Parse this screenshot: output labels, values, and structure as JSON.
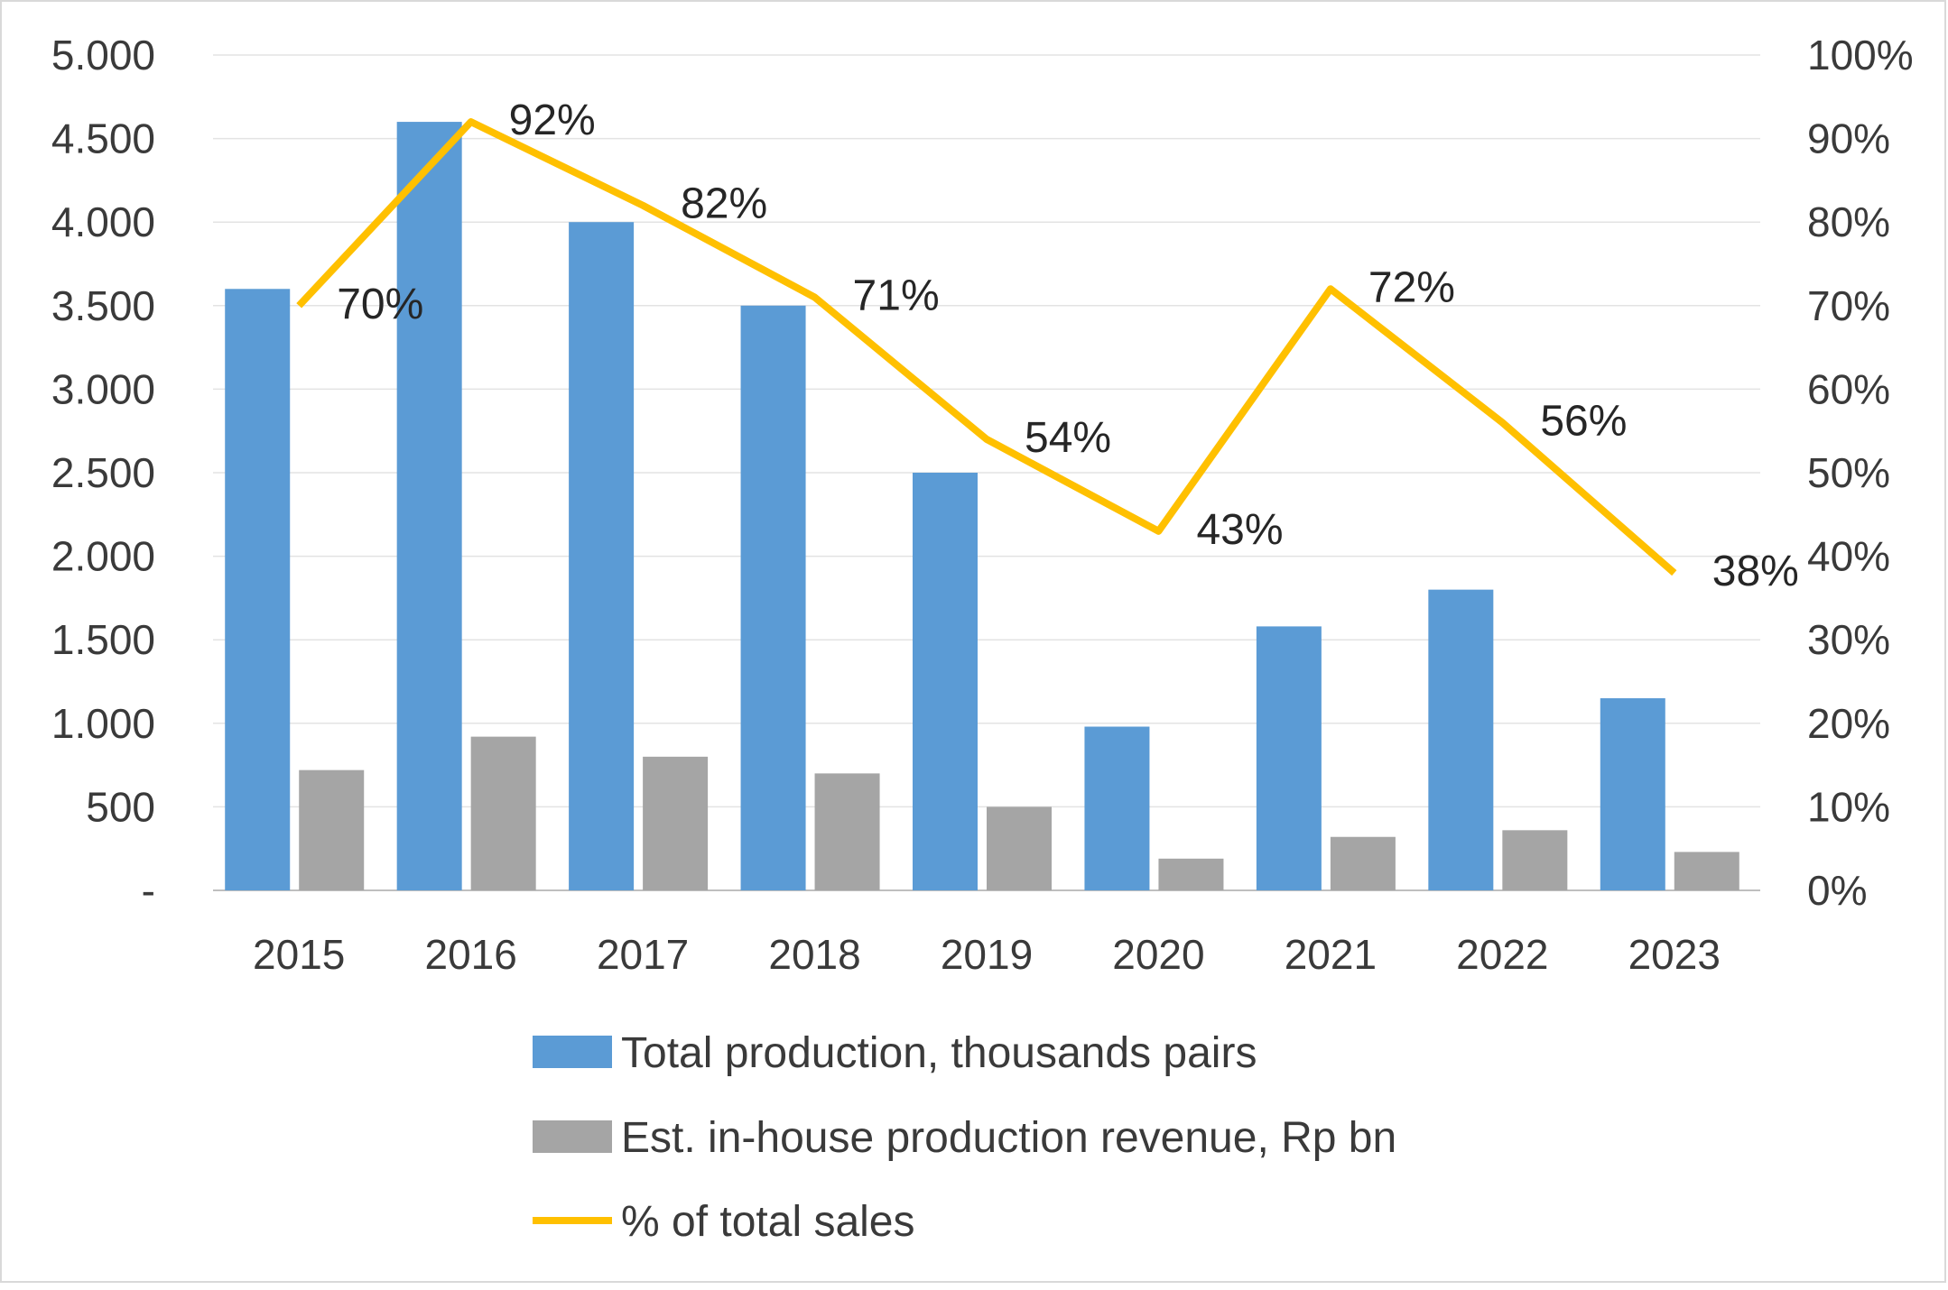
{
  "chart_data": {
    "type": "bar",
    "categories": [
      "2015",
      "2016",
      "2017",
      "2018",
      "2019",
      "2020",
      "2021",
      "2022",
      "2023"
    ],
    "series": [
      {
        "name": "Total production, thousands pairs",
        "type": "bar",
        "axis": "left",
        "color": "#5b9bd5",
        "values": [
          3600,
          4600,
          4000,
          3500,
          2500,
          980,
          1580,
          1800,
          1150
        ]
      },
      {
        "name": "Est. in-house production revenue, Rp bn",
        "type": "bar",
        "axis": "left",
        "color": "#a5a5a5",
        "values": [
          720,
          920,
          800,
          700,
          500,
          190,
          320,
          360,
          230
        ]
      },
      {
        "name": "% of total sales",
        "type": "line",
        "axis": "right",
        "color": "#ffc000",
        "values": [
          70,
          92,
          82,
          71,
          54,
          43,
          72,
          56,
          38
        ]
      }
    ],
    "data_labels": [
      "70%",
      "92%",
      "82%",
      "71%",
      "54%",
      "43%",
      "72%",
      "56%",
      "38%"
    ],
    "left_axis": {
      "min": 0,
      "max": 5000,
      "ticks": [
        "-",
        "500",
        "1.000",
        "1.500",
        "2.000",
        "2.500",
        "3.000",
        "3.500",
        "4.000",
        "4.500",
        "5.000"
      ]
    },
    "right_axis": {
      "min": 0,
      "max": 100,
      "ticks": [
        "0%",
        "10%",
        "20%",
        "30%",
        "40%",
        "50%",
        "60%",
        "70%",
        "80%",
        "90%",
        "100%"
      ]
    },
    "grid": true,
    "legend_position": "bottom"
  }
}
